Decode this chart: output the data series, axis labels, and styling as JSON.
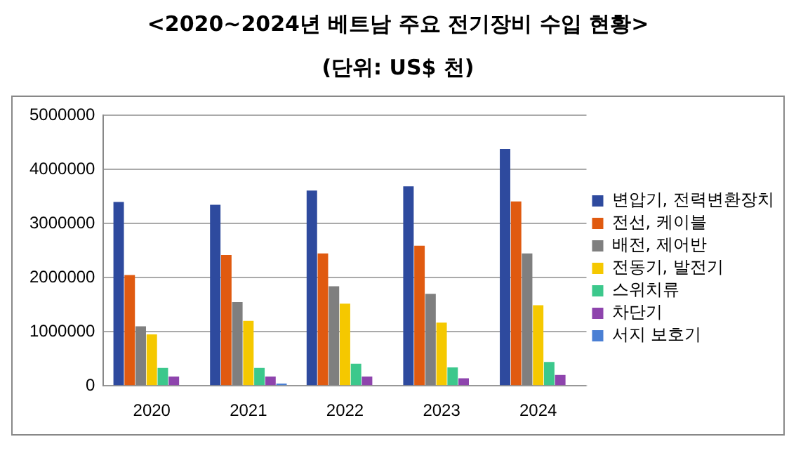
{
  "chart_data": {
    "type": "bar",
    "title": "<2020~2024년 베트남 주요 전기장비 수입 현황>",
    "subtitle": "(단위: US$ 천)",
    "categories": [
      "2020",
      "2021",
      "2022",
      "2023",
      "2024"
    ],
    "series": [
      {
        "name": "변압기, 전력변환장치",
        "color": "#2e4a9e",
        "values": [
          3400000,
          3350000,
          3610000,
          3690000,
          4380000
        ]
      },
      {
        "name": "전선, 케이블",
        "color": "#e05a10",
        "values": [
          2050000,
          2420000,
          2450000,
          2590000,
          3410000
        ]
      },
      {
        "name": "배전, 제어반",
        "color": "#7f7f7f",
        "values": [
          1100000,
          1550000,
          1840000,
          1700000,
          2450000
        ]
      },
      {
        "name": "전동기, 발전기",
        "color": "#f5c800",
        "values": [
          950000,
          1200000,
          1520000,
          1170000,
          1490000
        ]
      },
      {
        "name": "스위치류",
        "color": "#3cc88c",
        "values": [
          330000,
          330000,
          410000,
          340000,
          440000
        ]
      },
      {
        "name": "차단기",
        "color": "#8e44ad",
        "values": [
          170000,
          170000,
          170000,
          140000,
          200000
        ]
      },
      {
        "name": "서지 보호기",
        "color": "#4a7fd4",
        "values": [
          0,
          40000,
          0,
          0,
          0
        ]
      }
    ],
    "ylim": [
      0,
      5000000
    ],
    "yticks": [
      0,
      1000000,
      2000000,
      3000000,
      4000000,
      5000000
    ],
    "grid": "y",
    "legend": "right"
  }
}
